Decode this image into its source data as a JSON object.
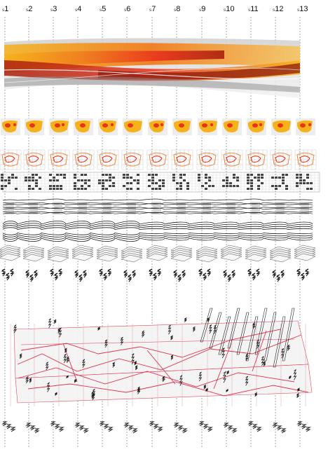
{
  "sections": [
    {
      "prefix": "s",
      "number": "1"
    },
    {
      "prefix": "s",
      "number": "2"
    },
    {
      "prefix": "s",
      "number": "3"
    },
    {
      "prefix": "s",
      "number": "4"
    },
    {
      "prefix": "s",
      "number": "5"
    },
    {
      "prefix": "s",
      "number": "6"
    },
    {
      "prefix": "s",
      "number": "7"
    },
    {
      "prefix": "s",
      "number": "8"
    },
    {
      "prefix": "s",
      "number": "9"
    },
    {
      "prefix": "s",
      "number": "10"
    },
    {
      "prefix": "s",
      "number": "11"
    },
    {
      "prefix": "s",
      "number": "12"
    },
    {
      "prefix": "s",
      "number": "13"
    }
  ],
  "rows": [
    {
      "name": "gradient-flow-band"
    },
    {
      "name": "color-section-profiles"
    },
    {
      "name": "outlined-section-profiles"
    },
    {
      "name": "grid-pixel-sections"
    },
    {
      "name": "stacked-strand-row"
    },
    {
      "name": "woven-loop-row"
    },
    {
      "name": "layered-plane-row"
    },
    {
      "name": "zigzag-glyph-row"
    },
    {
      "name": "network-axonometric"
    },
    {
      "name": "bottom-glyph-row"
    }
  ],
  "colors": {
    "deep_red": "#a8200e",
    "red": "#e8331c",
    "orange": "#f07d1f",
    "yellow": "#f6b21a",
    "light_gray": "#d9d9d9",
    "mid_gray": "#9a9a9a",
    "network_red": "#e0344c",
    "ink": "#1a1a1a"
  }
}
